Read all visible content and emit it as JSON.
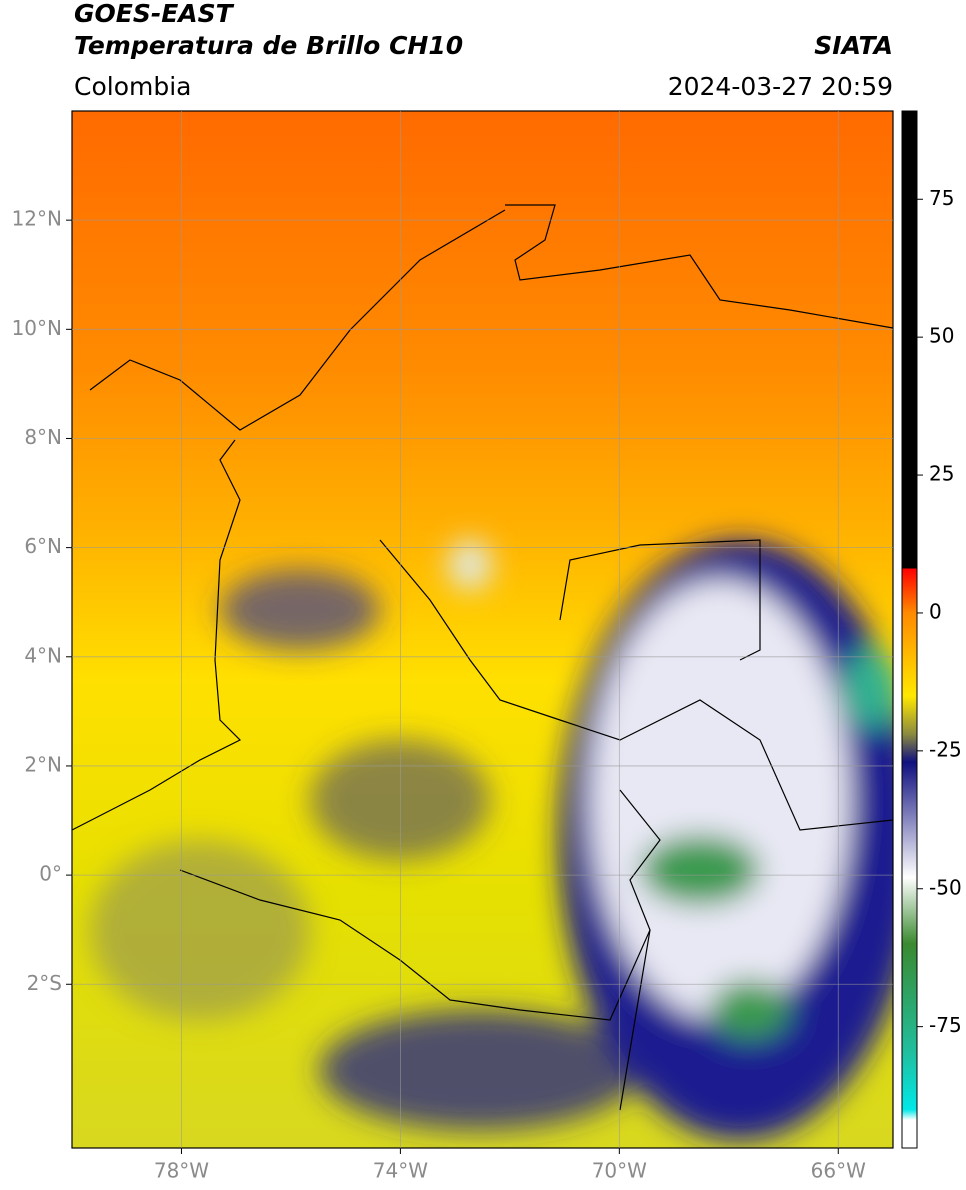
{
  "header": {
    "title": "GOES-EAST",
    "subtitle": "Temperatura de Brillo CH10",
    "region": "Colombia",
    "source": "SIATA",
    "datetime": "2024-03-27 20:59"
  },
  "map": {
    "xlim": [
      -80,
      -65
    ],
    "ylim": [
      -5,
      14
    ],
    "xticks": [
      {
        "value": -78,
        "label": "78°W"
      },
      {
        "value": -74,
        "label": "74°W"
      },
      {
        "value": -70,
        "label": "70°W"
      },
      {
        "value": -66,
        "label": "66°W"
      }
    ],
    "yticks": [
      {
        "value": 12,
        "label": "12°N"
      },
      {
        "value": 10,
        "label": "10°N"
      },
      {
        "value": 8,
        "label": "8°N"
      },
      {
        "value": 6,
        "label": "6°N"
      },
      {
        "value": 4,
        "label": "4°N"
      },
      {
        "value": 2,
        "label": "2°N"
      },
      {
        "value": 0,
        "label": "0°"
      },
      {
        "value": -2,
        "label": "2°S"
      }
    ],
    "grid": true
  },
  "colorbar": {
    "clim": [
      -97,
      91
    ],
    "ticks": [
      75,
      50,
      25,
      0,
      -25,
      -50,
      -75
    ]
  }
}
